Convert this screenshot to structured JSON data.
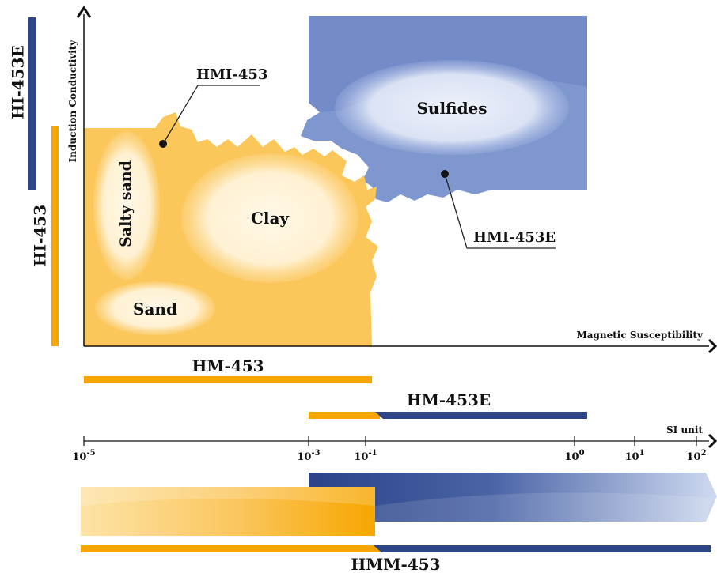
{
  "axes": {
    "y_label": "Induction Conductivity",
    "x_label": "Magnetic Susceptibility",
    "si_unit": "SI unit"
  },
  "zones": {
    "salty_sand": "Salty sand",
    "clay": "Clay",
    "sand": "Sand",
    "sulfides": "Sulfides"
  },
  "pointers": {
    "hmi": "HMI-453",
    "hmie": "HMI-453E"
  },
  "ranges": {
    "hi453e": "HI-453E",
    "hi453": "HI-453",
    "hm453": "HM-453",
    "hm453e": "HM-453E",
    "hmm453": "HMM-453"
  },
  "scale": {
    "ticks": [
      {
        "base": "10",
        "exp": "-5"
      },
      {
        "base": "10",
        "exp": "-3"
      },
      {
        "base": "10",
        "exp": "-1"
      },
      {
        "base": "10",
        "exp": "0"
      },
      {
        "base": "10",
        "exp": "1"
      },
      {
        "base": "10",
        "exp": "2"
      }
    ]
  },
  "colors": {
    "orange": "#f7a600",
    "orange_fill": "#fbc65a",
    "blue_band": "#2e4588",
    "blue_fill": "#7f97cf"
  }
}
